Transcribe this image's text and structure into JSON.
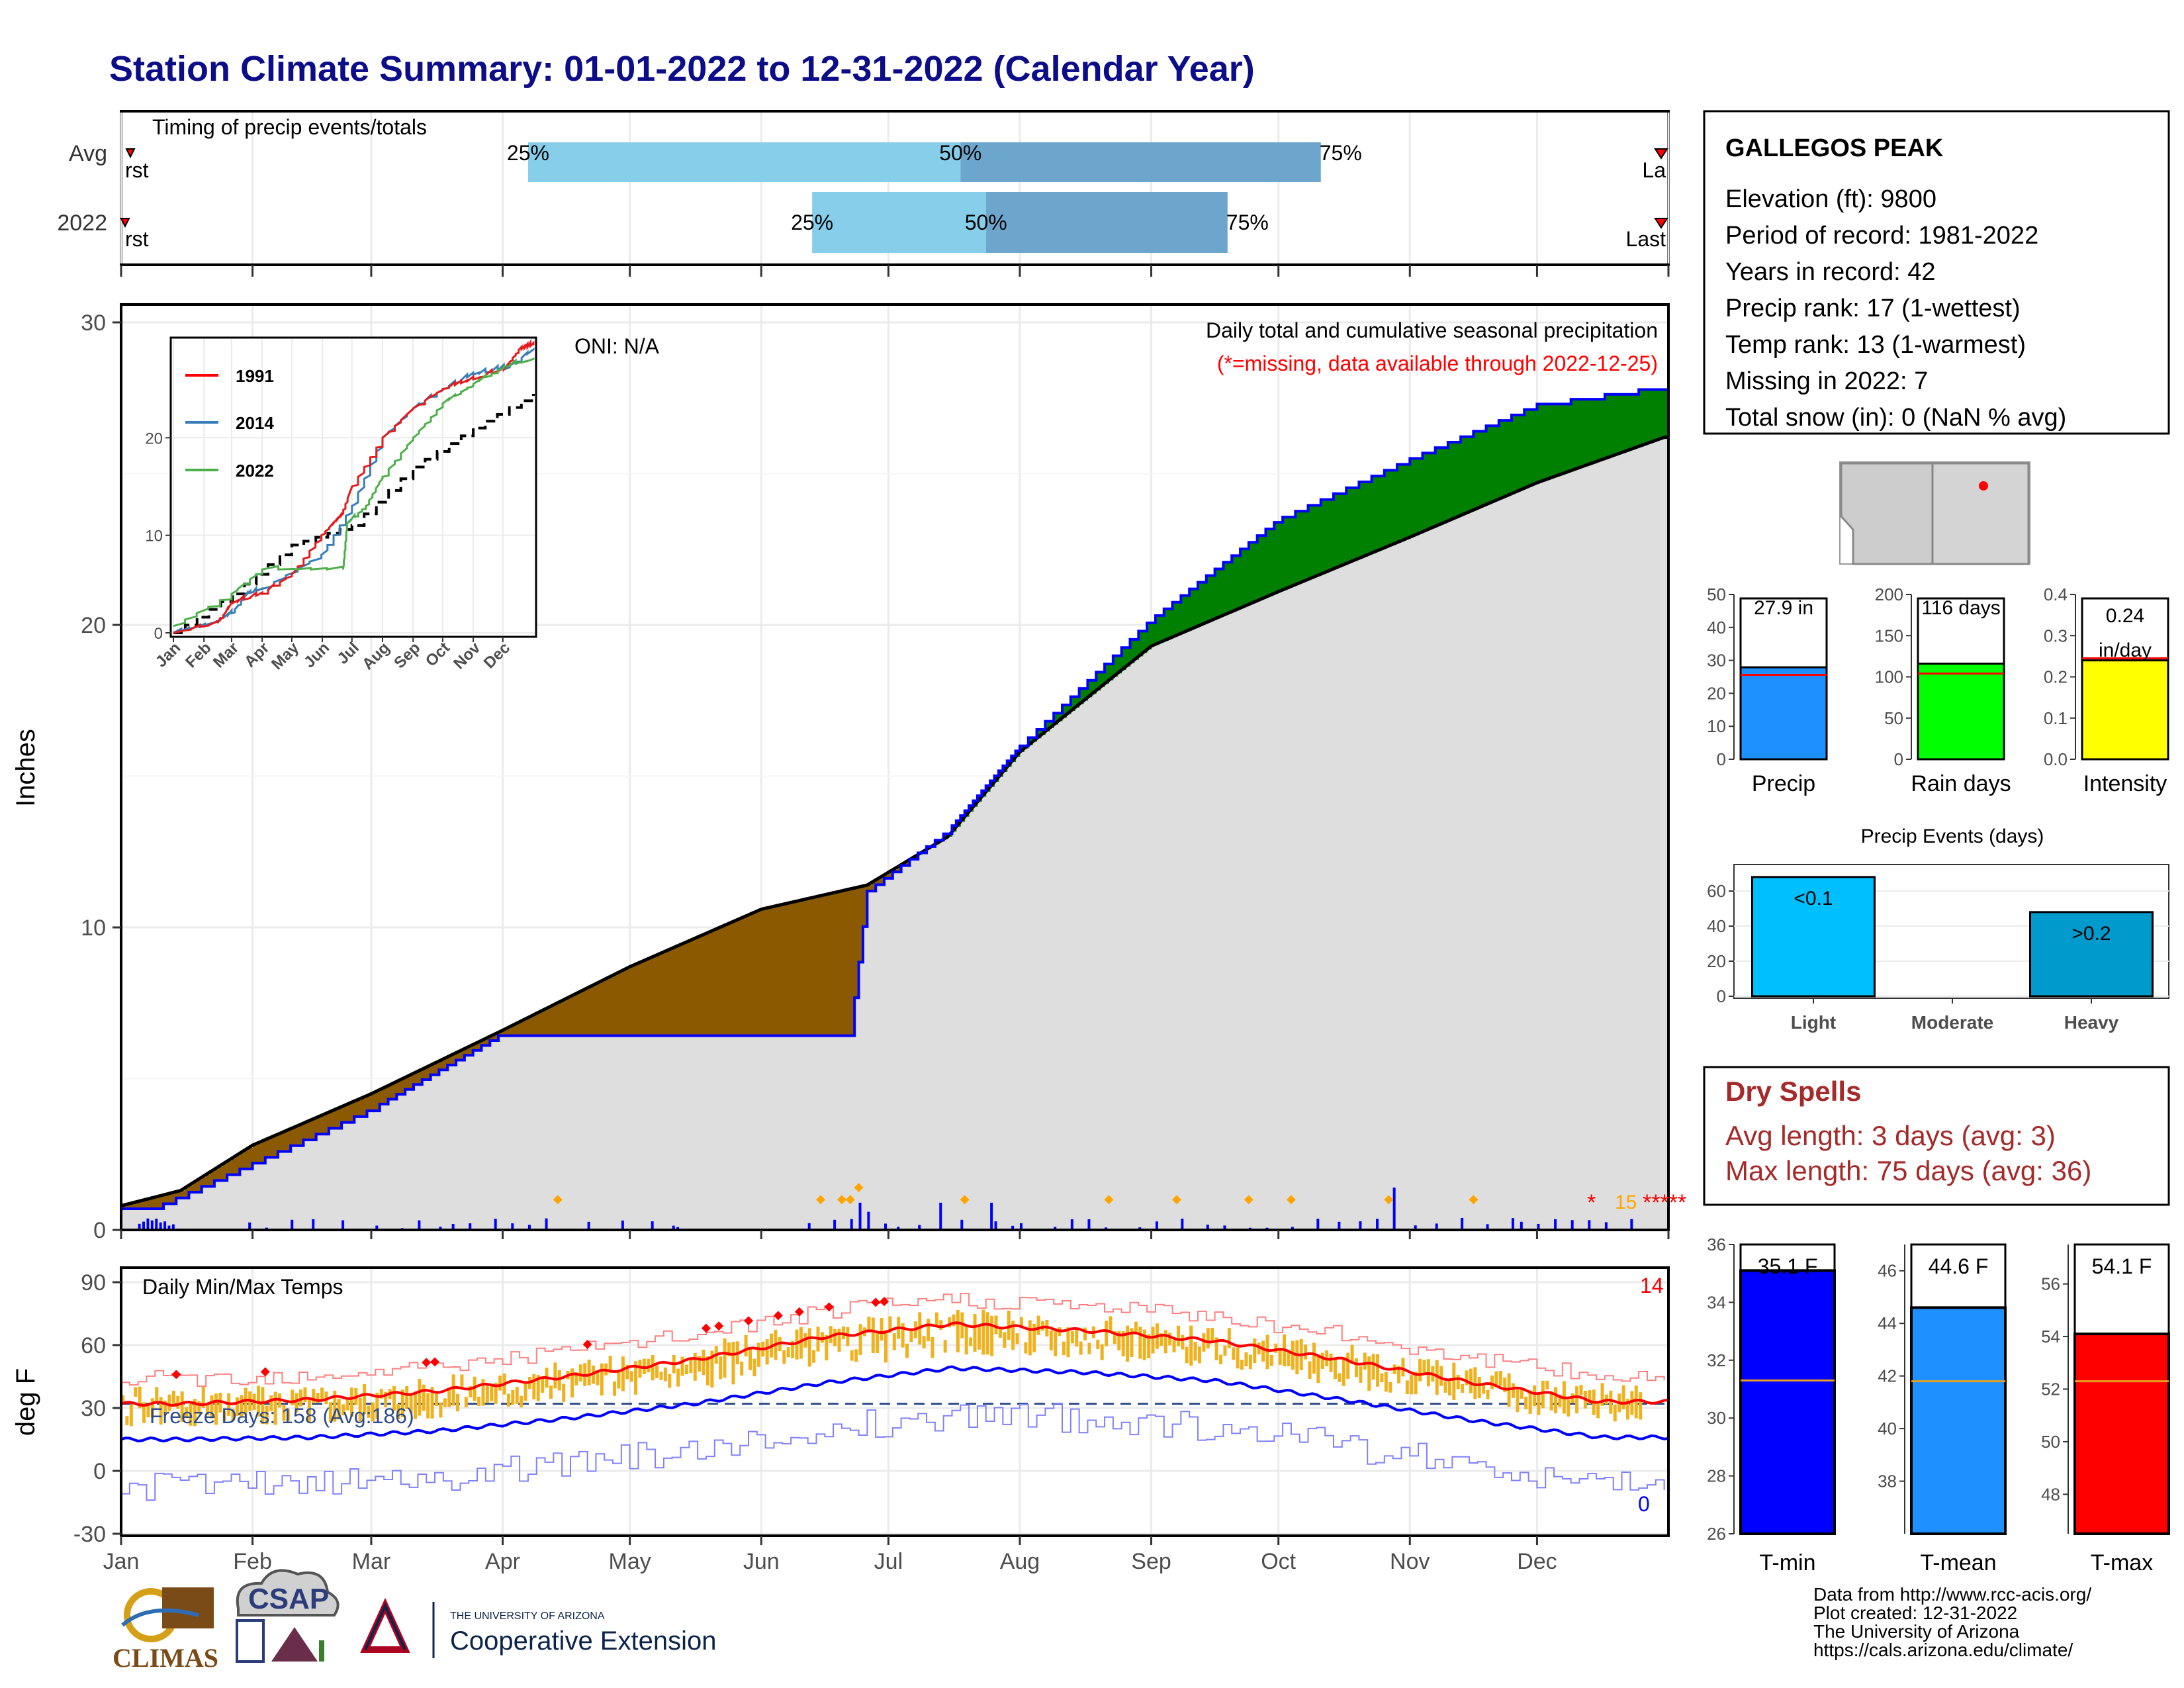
{
  "title": "Station Climate Summary: 01-01-2022 to 12-31-2022 (Calendar Year)",
  "colors": {
    "title": "#0d0d8a",
    "light_blue": "#87ceeb",
    "mid_blue": "#6ca6cd",
    "brown": "#8b5a00",
    "green": "#008000",
    "grey_fill": "#dedede",
    "blue": "#0000ff",
    "red": "#ff0000",
    "orange": "#efb21f",
    "dry_red": "#a52a2a"
  },
  "timing": {
    "label": "Timing of precip events/totals",
    "rows": [
      {
        "name": "Avg",
        "first": "First",
        "last": "Last",
        "p25": "25%",
        "p50": "50%",
        "p75": "75%",
        "d25": 96,
        "d50": 198,
        "d75": 283
      },
      {
        "name": "2022",
        "first": "First",
        "last": "Last",
        "p25": "25%",
        "p50": "50%",
        "p75": "75%",
        "d25": 163,
        "d50": 204,
        "d75": 261
      }
    ]
  },
  "precip_panel": {
    "ylabel": "Inches",
    "oni": "ONI: N/A",
    "header": "Daily total and cumulative seasonal precipitation",
    "missing_note": "(*=missing, data available through 2022-12-25)",
    "missing_count": "15",
    "yticks": [
      "0",
      "10",
      "20",
      "30"
    ]
  },
  "inset": {
    "legend": [
      "1991",
      "2014",
      "2022"
    ],
    "yticks": [
      "0",
      "10",
      "20"
    ],
    "months": [
      "Jan",
      "Feb",
      "Mar",
      "Apr",
      "May",
      "Jun",
      "Jul",
      "Aug",
      "Sep",
      "Oct",
      "Nov",
      "Dec"
    ]
  },
  "temp_panel": {
    "ylabel": "deg F",
    "title": "Daily Min/Max Temps",
    "freeze": "Freeze Days: 158 (Avg:186)",
    "record_high_count": "14",
    "record_low_count": "0",
    "yticks": [
      "-30",
      "0",
      "30",
      "60",
      "90"
    ]
  },
  "months": [
    "Jan",
    "Feb",
    "Mar",
    "Apr",
    "May",
    "Jun",
    "Jul",
    "Aug",
    "Sep",
    "Oct",
    "Nov",
    "Dec"
  ],
  "station": {
    "name": "GALLEGOS PEAK",
    "lines": [
      "Elevation (ft): 9800",
      "Period of record: 1981-2022",
      "Years in record: 42",
      "Precip rank: 17 (1-wettest)",
      "Temp rank: 13 (1-warmest)",
      "Missing in 2022: 7",
      "Total snow (in): 0 (NaN % avg)"
    ]
  },
  "summary_bars": [
    {
      "label": "Precip",
      "value_text": "27.9 in",
      "value": 27.9,
      "avg": 25.6,
      "max": 50,
      "yticks": [
        "0",
        "10",
        "20",
        "30",
        "40",
        "50"
      ],
      "color": "#1e90ff"
    },
    {
      "label": "Rain days",
      "value_text": "116 days",
      "value": 116,
      "avg": 104,
      "max": 200,
      "yticks": [
        "0",
        "50",
        "100",
        "150",
        "200"
      ],
      "color": "#00ff00"
    },
    {
      "label": "Intensity",
      "value_text": "0.24",
      "value_text2": "in/day",
      "value": 0.24,
      "avg": 0.245,
      "max": 0.4,
      "yticks": [
        "0.0",
        "0.1",
        "0.2",
        "0.3",
        "0.4"
      ],
      "color": "#ffff00"
    }
  ],
  "events": {
    "title": "Precip Events (days)",
    "categories": [
      "Light",
      "Moderate",
      "Heavy"
    ],
    "labels": [
      "<0.1",
      "",
      ">0.2"
    ],
    "values": [
      68,
      0,
      48
    ],
    "yticks": [
      "0",
      "20",
      "40",
      "60"
    ],
    "colors": [
      "#00bfff",
      "#1e90ff",
      "#009acd"
    ]
  },
  "dry_spells": {
    "title": "Dry Spells",
    "avg": "Avg length: 3 days (avg: 3)",
    "max": "Max length: 75 days (avg: 36)"
  },
  "temp_bars": [
    {
      "label": "T-min",
      "value_text": "35.1 F",
      "value": 35.1,
      "avg": 31.3,
      "min": 26,
      "max": 36,
      "yticks": [
        "26",
        "28",
        "30",
        "32",
        "34",
        "36"
      ],
      "color": "#0000ff"
    },
    {
      "label": "T-mean",
      "value_text": "44.6 F",
      "value": 44.6,
      "avg": 41.8,
      "min": 36,
      "max": 47,
      "yticks": [
        "38",
        "40",
        "42",
        "44",
        "46"
      ],
      "color": "#1e90ff"
    },
    {
      "label": "T-max",
      "value_text": "54.1 F",
      "value": 54.1,
      "avg": 52.3,
      "min": 46.5,
      "max": 57.5,
      "yticks": [
        "48",
        "50",
        "52",
        "54",
        "56"
      ],
      "color": "#ff0000"
    }
  ],
  "credits": [
    "Data from http://www.rcc-acis.org/",
    "Plot created: 12-31-2022",
    "The University of Arizona",
    "https://cals.arizona.edu/climate/"
  ],
  "logos": {
    "climas": "CLIMAS",
    "csap": "CSAP",
    "ua_small": "THE UNIVERSITY OF ARIZONA",
    "ua_big": "Cooperative Extension"
  },
  "chart_data": [
    {
      "type": "area",
      "title": "Daily total and cumulative seasonal precipitation",
      "ylabel": "Inches",
      "ylim": [
        0,
        30
      ],
      "series": [
        {
          "name": "",
          "x": [
            "01-01",
            "01-15",
            "02-01",
            "03-01",
            "04-01",
            "05-01",
            "06-01",
            "06-26",
            "07-15",
            "08-01",
            "09-01",
            "10-01",
            "11-01",
            "12-01",
            "12-31"
          ],
          "values": [
            0.8,
            1.3,
            2.8,
            4.5,
            6.6,
            8.7,
            10.6,
            11.4,
            13.0,
            15.8,
            19.3,
            21.1,
            22.9,
            24.7,
            26.2
          ]
        },
        {
          "name": "2022",
          "x": [
            "01-01",
            "01-10",
            "03-01",
            "04-01",
            "06-22",
            "06-26",
            "07-15",
            "08-01",
            "09-01",
            "10-01",
            "11-01",
            "12-01",
            "12-31"
          ],
          "values": [
            0.7,
            0.8,
            4.0,
            6.5,
            6.5,
            11.2,
            13.2,
            16.0,
            20.2,
            23.5,
            25.5,
            27.3,
            27.9
          ]
        }
      ]
    },
    {
      "type": "line",
      "title": "Daily Min/Max Temps",
      "ylabel": "deg F",
      "ylim": [
        -30,
        90
      ],
      "categories": [
        "Jan",
        "Feb",
        "Mar",
        "Apr",
        "May",
        "Jun",
        "Jul",
        "Aug",
        "Sep",
        "Oct",
        "Nov",
        "Dec"
      ],
      "series": [
        {
          "name": "",
          "values": [
            32,
            34,
            38,
            45,
            53,
            64,
            70,
            67,
            62,
            53,
            42,
            33
          ]
        },
        {
          "name": "",
          "values": [
            15,
            16,
            19,
            25,
            32,
            42,
            49,
            47,
            43,
            34,
            24,
            16
          ]
        }
      ]
    }
  ]
}
